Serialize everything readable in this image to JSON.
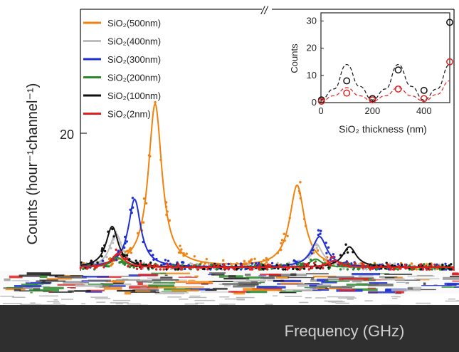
{
  "chart_data": [
    {
      "type": "line",
      "title": "",
      "xlabel": "Frequency (GHz)",
      "ylabel": "Counts (hour⁻¹channel⁻¹)",
      "yticks": [
        "20"
      ],
      "axis_break_mark": "//",
      "legend_position": "top-left",
      "series": [
        {
          "name": "SiO₂(500nm)",
          "color": "#f0820f",
          "peaks": [
            {
              "x": 0.2,
              "height": 24.0,
              "width": 0.022
            },
            {
              "x": 0.58,
              "height": 12.0,
              "width": 0.024
            }
          ]
        },
        {
          "name": "SiO₂(400nm)",
          "color": "#bdbdbd",
          "peaks": [
            {
              "x": 0.095,
              "height": 5.0,
              "width": 0.02
            },
            {
              "x": 0.63,
              "height": 3.5,
              "width": 0.022
            }
          ]
        },
        {
          "name": "SiO₂(300nm)",
          "color": "#1f2fd0",
          "peaks": [
            {
              "x": 0.145,
              "height": 10.0,
              "width": 0.02
            },
            {
              "x": 0.64,
              "height": 4.5,
              "width": 0.024
            }
          ]
        },
        {
          "name": "SiO₂(200nm)",
          "color": "#2a8a2a",
          "peaks": [
            {
              "x": 0.1,
              "height": 1.4,
              "width": 0.02
            },
            {
              "x": 0.63,
              "height": 1.2,
              "width": 0.02
            }
          ]
        },
        {
          "name": "SiO₂(100nm)",
          "color": "#111111",
          "peaks": [
            {
              "x": 0.085,
              "height": 6.0,
              "width": 0.02
            },
            {
              "x": 0.72,
              "height": 3.0,
              "width": 0.022
            }
          ]
        },
        {
          "name": "SiO₂(2nm)",
          "color": "#e02020",
          "peaks": [
            {
              "x": 0.1,
              "height": 2.0,
              "width": 0.02
            },
            {
              "x": 0.68,
              "height": 1.0,
              "width": 0.02
            }
          ]
        }
      ]
    },
    {
      "type": "scatter",
      "inset": true,
      "xlabel": "SiO₂ thickness (nm)",
      "ylabel": "Counts",
      "xlim": [
        0,
        500
      ],
      "ylim": [
        0,
        33
      ],
      "xticks": [
        0,
        200,
        400
      ],
      "yticks": [
        0,
        10,
        20,
        30
      ],
      "series": [
        {
          "color": "#111111",
          "points": [
            {
              "x": 2,
              "y": 1
            },
            {
              "x": 100,
              "y": 8
            },
            {
              "x": 200,
              "y": 1.5
            },
            {
              "x": 300,
              "y": 12
            },
            {
              "x": 400,
              "y": 4.5
            },
            {
              "x": 500,
              "y": 29.5
            }
          ],
          "fit": [
            {
              "x": 0,
              "y": 1
            },
            {
              "x": 50,
              "y": 5
            },
            {
              "x": 100,
              "y": 14
            },
            {
              "x": 150,
              "y": 6
            },
            {
              "x": 200,
              "y": 1
            },
            {
              "x": 250,
              "y": 5
            },
            {
              "x": 300,
              "y": 14
            },
            {
              "x": 350,
              "y": 6
            },
            {
              "x": 400,
              "y": 1
            },
            {
              "x": 450,
              "y": 5
            },
            {
              "x": 500,
              "y": 14
            }
          ]
        },
        {
          "color": "#e02020",
          "points": [
            {
              "x": 2,
              "y": 0.5
            },
            {
              "x": 100,
              "y": 3.5
            },
            {
              "x": 200,
              "y": 1
            },
            {
              "x": 300,
              "y": 5
            },
            {
              "x": 400,
              "y": 1.5
            },
            {
              "x": 500,
              "y": 15
            }
          ],
          "fit": [
            {
              "x": 0,
              "y": 0.5
            },
            {
              "x": 50,
              "y": 2.5
            },
            {
              "x": 100,
              "y": 5.5
            },
            {
              "x": 150,
              "y": 2.5
            },
            {
              "x": 200,
              "y": 0.5
            },
            {
              "x": 250,
              "y": 2.5
            },
            {
              "x": 300,
              "y": 5.5
            },
            {
              "x": 350,
              "y": 2.5
            },
            {
              "x": 400,
              "y": 0.5
            },
            {
              "x": 450,
              "y": 3
            },
            {
              "x": 500,
              "y": 8
            }
          ]
        }
      ]
    }
  ]
}
